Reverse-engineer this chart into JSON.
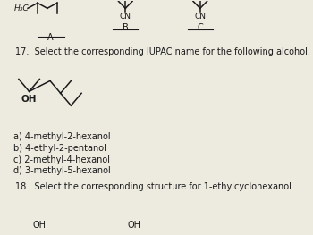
{
  "bg_color": "#edeae0",
  "text_color": "#1a1a1a",
  "title_q17": "17.  Select the corresponding IUPAC name for the following alcohol.",
  "options_q17": [
    "a) 4-methyl-2-hexanol",
    "b) 4-ethyl-2-pentanol",
    "c) 2-methyl-4-hexanol",
    "d) 3-methyl-5-hexanol"
  ],
  "title_q18": "18.  Select the corresponding structure for 1-ethylcyclohexanol",
  "h3c_label": "H₃C"
}
